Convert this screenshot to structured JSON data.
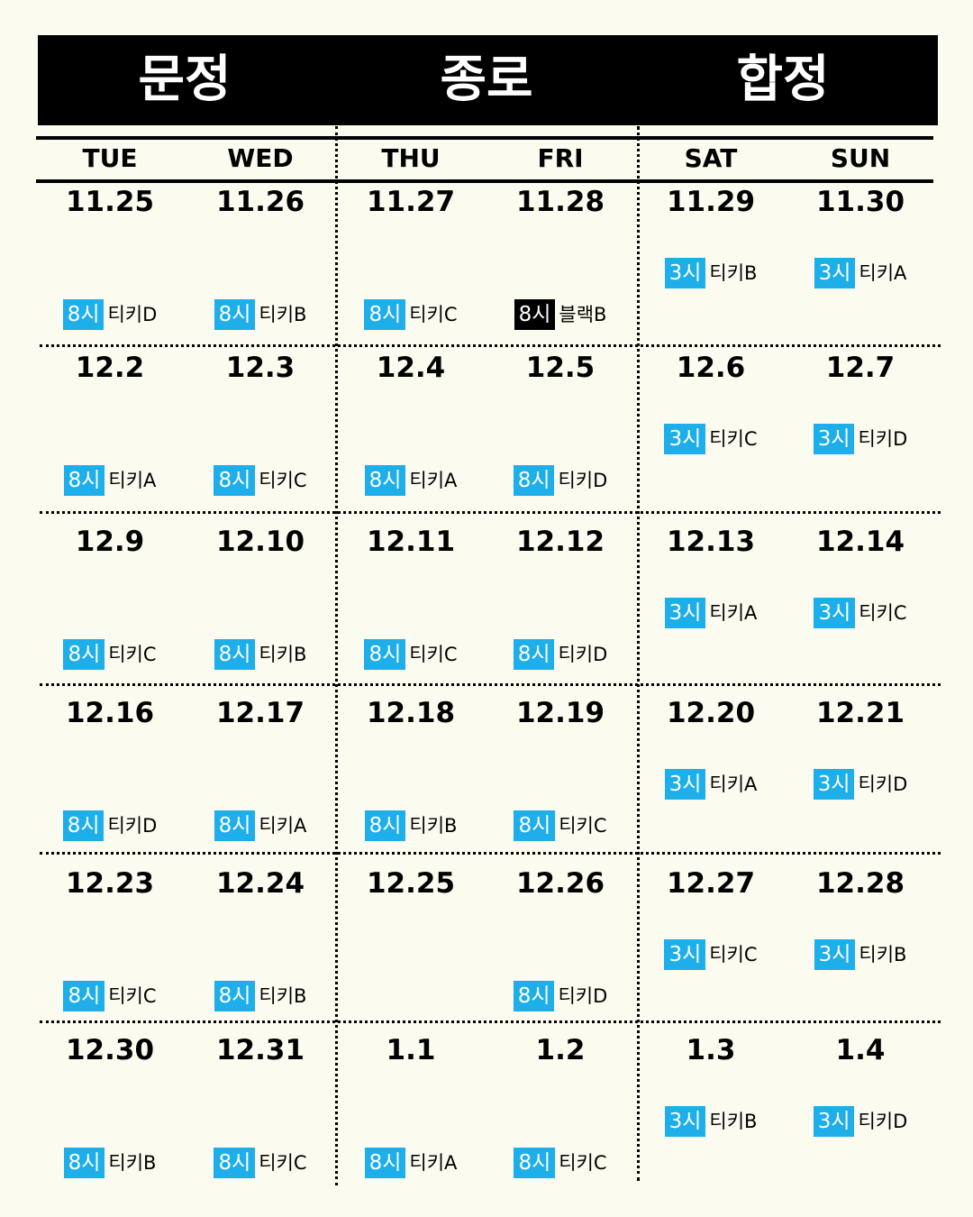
{
  "venues": [
    "문정",
    "종로",
    "합정"
  ],
  "days": [
    "TUE",
    "WED",
    "THU",
    "FRI",
    "SAT",
    "SUN"
  ],
  "weeks": [
    {
      "cells": [
        {
          "date": "11.25",
          "time": "8시",
          "cast": "티키D",
          "time_color": "blue"
        },
        {
          "date": "11.26",
          "time": "8시",
          "cast": "티키B",
          "time_color": "blue"
        },
        {
          "date": "11.27",
          "time": "8시",
          "cast": "티키C",
          "time_color": "blue"
        },
        {
          "date": "11.28",
          "time": "8시",
          "cast": "블랙B",
          "time_color": "black"
        },
        {
          "date": "11.29",
          "time": "3시",
          "cast": "티키B",
          "time_color": "blue"
        },
        {
          "date": "11.30",
          "time": "3시",
          "cast": "티키A",
          "time_color": "blue"
        }
      ]
    },
    {
      "cells": [
        {
          "date": "12.2",
          "time": "8시",
          "cast": "티키A",
          "time_color": "blue"
        },
        {
          "date": "12.3",
          "time": "8시",
          "cast": "티키C",
          "time_color": "blue"
        },
        {
          "date": "12.4",
          "time": "8시",
          "cast": "티키A",
          "time_color": "blue"
        },
        {
          "date": "12.5",
          "time": "8시",
          "cast": "티키D",
          "time_color": "blue"
        },
        {
          "date": "12.6",
          "time": "3시",
          "cast": "티키C",
          "time_color": "blue"
        },
        {
          "date": "12.7",
          "time": "3시",
          "cast": "티키D",
          "time_color": "blue"
        }
      ]
    },
    {
      "cells": [
        {
          "date": "12.9",
          "time": "8시",
          "cast": "티키C",
          "time_color": "blue"
        },
        {
          "date": "12.10",
          "time": "8시",
          "cast": "티키B",
          "time_color": "blue"
        },
        {
          "date": "12.11",
          "time": "8시",
          "cast": "티키C",
          "time_color": "blue"
        },
        {
          "date": "12.12",
          "time": "8시",
          "cast": "티키D",
          "time_color": "blue"
        },
        {
          "date": "12.13",
          "time": "3시",
          "cast": "티키A",
          "time_color": "blue"
        },
        {
          "date": "12.14",
          "time": "3시",
          "cast": "티키C",
          "time_color": "blue"
        }
      ]
    },
    {
      "cells": [
        {
          "date": "12.16",
          "time": "8시",
          "cast": "티키D",
          "time_color": "blue"
        },
        {
          "date": "12.17",
          "time": "8시",
          "cast": "티키A",
          "time_color": "blue"
        },
        {
          "date": "12.18",
          "time": "8시",
          "cast": "티키B",
          "time_color": "blue"
        },
        {
          "date": "12.19",
          "time": "8시",
          "cast": "티키C",
          "time_color": "blue"
        },
        {
          "date": "12.20",
          "time": "3시",
          "cast": "티키A",
          "time_color": "blue"
        },
        {
          "date": "12.21",
          "time": "3시",
          "cast": "티키D",
          "time_color": "blue"
        }
      ]
    },
    {
      "cells": [
        {
          "date": "12.23",
          "time": "8시",
          "cast": "티키C",
          "time_color": "blue"
        },
        {
          "date": "12.24",
          "time": "8시",
          "cast": "티키B",
          "time_color": "blue"
        },
        {
          "date": "12.25"
        },
        {
          "date": "12.26",
          "time": "8시",
          "cast": "티키D",
          "time_color": "blue"
        },
        {
          "date": "12.27",
          "time": "3시",
          "cast": "티키C",
          "time_color": "blue"
        },
        {
          "date": "12.28",
          "time": "3시",
          "cast": "티키B",
          "time_color": "blue"
        }
      ]
    },
    {
      "cells": [
        {
          "date": "12.30",
          "time": "8시",
          "cast": "티키B",
          "time_color": "blue"
        },
        {
          "date": "12.31",
          "time": "8시",
          "cast": "티키C",
          "time_color": "blue"
        },
        {
          "date": "1.1",
          "time": "8시",
          "cast": "티키A",
          "time_color": "blue"
        },
        {
          "date": "1.2",
          "time": "8시",
          "cast": "티키C",
          "time_color": "blue"
        },
        {
          "date": "1.3",
          "time": "3시",
          "cast": "티키B",
          "time_color": "blue"
        },
        {
          "date": "1.4",
          "time": "3시",
          "cast": "티키D",
          "time_color": "blue"
        }
      ]
    }
  ],
  "colors": {
    "background": "#fbfbef",
    "time_blue": "#1eaeea",
    "time_black": "#000000",
    "ink": "#000000"
  }
}
